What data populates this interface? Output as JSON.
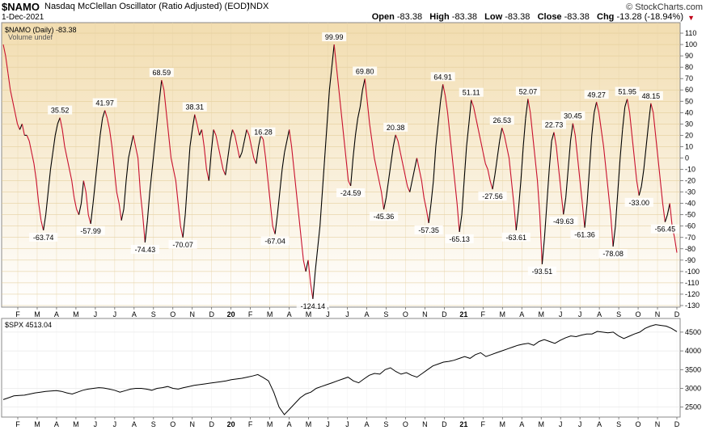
{
  "header": {
    "symbol": "$NAMO",
    "description": "Nasdaq McClellan Oscillator (Ratio Adjusted) (EOD)",
    "exchange": "INDX",
    "date": "1-Dec-2021",
    "logo_text": "© StockCharts.com",
    "open_label": "Open",
    "open": "-83.38",
    "high_label": "High",
    "high": "-83.38",
    "low_label": "Low",
    "low": "-83.38",
    "close_label": "Close",
    "close": "-83.38",
    "chg_label": "Chg",
    "chg": "-13.28 (-18.94%)"
  },
  "colors": {
    "up": "#000000",
    "down": "#c8102e",
    "bg_top": "#f2ddb0",
    "bg_bottom": "#ffffff",
    "label_box": "#ffffff"
  },
  "chart_data": [
    {
      "type": "line",
      "legend": "$NAMO (Daily) -83.38",
      "volume_note": "Volume undef",
      "ylim": [
        -130,
        115
      ],
      "yticks": [
        110,
        100,
        90,
        80,
        70,
        60,
        50,
        40,
        30,
        20,
        10,
        0,
        -10,
        -20,
        -30,
        -40,
        -50,
        -60,
        -70,
        -80,
        -90,
        -100,
        -110,
        -120,
        -130
      ],
      "x_labels": [
        "F",
        "M",
        "A",
        "M",
        "J",
        "J",
        "A",
        "S",
        "O",
        "N",
        "D",
        "20",
        "F",
        "M",
        "A",
        "M",
        "J",
        "J",
        "A",
        "S",
        "O",
        "N",
        "D",
        "21",
        "F",
        "M",
        "A",
        "M",
        "J",
        "J",
        "A",
        "S",
        "O",
        "N",
        "D"
      ],
      "x_domain": [
        "2019-02",
        "2021-12"
      ],
      "series": [
        {
          "values": [
            100,
            90,
            75,
            60,
            50,
            40,
            30,
            25,
            30,
            20,
            20,
            15,
            5,
            -5,
            -20,
            -40,
            -55,
            -63.74,
            -50,
            -30,
            -10,
            5,
            20,
            30,
            35.52,
            25,
            10,
            0,
            -10,
            -20,
            -35,
            -45,
            -50,
            -40,
            -20,
            -30,
            -50,
            -57.99,
            -40,
            -20,
            0,
            20,
            35,
            41.97,
            35,
            25,
            10,
            -10,
            -30,
            -40,
            -55,
            -45,
            -20,
            0,
            10,
            20,
            10,
            0,
            -30,
            -50,
            -74.43,
            -55,
            -30,
            -10,
            10,
            30,
            50,
            68.59,
            60,
            40,
            20,
            0,
            -10,
            -20,
            -40,
            -60,
            -70.07,
            -50,
            -20,
            10,
            25,
            38.31,
            30,
            20,
            25,
            10,
            -10,
            -20,
            5,
            25,
            20,
            10,
            0,
            -10,
            -15,
            0,
            15,
            25,
            20,
            10,
            0,
            5,
            15,
            25,
            20,
            10,
            0,
            -5,
            10,
            20,
            16.28,
            0,
            -20,
            -40,
            -60,
            -67.04,
            -50,
            -30,
            -10,
            5,
            15,
            25,
            10,
            -10,
            -30,
            -50,
            -70,
            -90,
            -100,
            -90,
            -110,
            -124.14,
            -100,
            -80,
            -60,
            -30,
            0,
            30,
            60,
            80,
            99.99,
            80,
            60,
            40,
            20,
            0,
            -20,
            -24.59,
            0,
            20,
            35,
            45,
            60,
            69.8,
            50,
            30,
            15,
            0,
            -10,
            -20,
            -30,
            -45.36,
            -35,
            -20,
            -5,
            10,
            20.38,
            15,
            5,
            -5,
            -15,
            -25,
            -30,
            -20,
            -10,
            0,
            -10,
            -20,
            -35,
            -45,
            -57.35,
            -40,
            -20,
            10,
            30,
            50,
            64.91,
            55,
            40,
            20,
            0,
            -20,
            -40,
            -65.13,
            -50,
            -20,
            10,
            30,
            51.11,
            45,
            35,
            25,
            15,
            5,
            -5,
            -10,
            -20,
            -27.56,
            -15,
            0,
            15,
            26.53,
            20,
            10,
            0,
            -20,
            -40,
            -63.61,
            -45,
            -20,
            10,
            35,
            52.07,
            40,
            20,
            0,
            -20,
            -50,
            -93.51,
            -70,
            -40,
            -10,
            15,
            22.73,
            10,
            -10,
            -30,
            -49.63,
            -35,
            -10,
            15,
            30.45,
            20,
            0,
            -20,
            -40,
            -61.36,
            -40,
            -10,
            20,
            40,
            49.27,
            40,
            25,
            10,
            -10,
            -30,
            -50,
            -78.08,
            -60,
            -30,
            0,
            25,
            45,
            51.95,
            40,
            20,
            0,
            -20,
            -33.0,
            -25,
            -10,
            10,
            30,
            48.15,
            40,
            20,
            0,
            -20,
            -40,
            -56.45,
            -50,
            -40,
            -60,
            -70.1,
            -83.38
          ],
          "annotations": [
            {
              "v": "-63.74"
            },
            {
              "v": "35.52"
            },
            {
              "v": "-57.99"
            },
            {
              "v": "41.97"
            },
            {
              "v": "-74.43"
            },
            {
              "v": "68.59"
            },
            {
              "v": "-70.07"
            },
            {
              "v": "38.31"
            },
            {
              "v": "16.28"
            },
            {
              "v": "-67.04"
            },
            {
              "v": "-124.14"
            },
            {
              "v": "99.99"
            },
            {
              "v": "-24.59"
            },
            {
              "v": "69.80"
            },
            {
              "v": "-45.36"
            },
            {
              "v": "20.38"
            },
            {
              "v": "-57.35"
            },
            {
              "v": "64.91"
            },
            {
              "v": "-65.13"
            },
            {
              "v": "51.11"
            },
            {
              "v": "-27.56"
            },
            {
              "v": "26.53"
            },
            {
              "v": "-63.61"
            },
            {
              "v": "52.07"
            },
            {
              "v": "-93.51"
            },
            {
              "v": "22.73"
            },
            {
              "v": "-49.63"
            },
            {
              "v": "30.45"
            },
            {
              "v": "-61.36"
            },
            {
              "v": "49.27"
            },
            {
              "v": "-78.08"
            },
            {
              "v": "-56.45"
            },
            {
              "v": "51.95"
            },
            {
              "v": "-33.00"
            },
            {
              "v": "48.15"
            }
          ]
        }
      ]
    },
    {
      "type": "line",
      "legend": "$SPX 4513.04",
      "ylim": [
        2300,
        4800
      ],
      "yticks": [
        4500,
        4000,
        3500,
        3000,
        2500
      ],
      "x_labels": [
        "F",
        "M",
        "A",
        "M",
        "J",
        "J",
        "A",
        "S",
        "O",
        "N",
        "D",
        "20",
        "F",
        "M",
        "A",
        "M",
        "J",
        "J",
        "A",
        "S",
        "O",
        "N",
        "D",
        "21",
        "F",
        "M",
        "A",
        "M",
        "J",
        "J",
        "A",
        "S",
        "O",
        "N",
        "D"
      ],
      "series": [
        {
          "values": [
            2700,
            2750,
            2800,
            2810,
            2820,
            2850,
            2880,
            2900,
            2920,
            2930,
            2940,
            2920,
            2880,
            2850,
            2900,
            2950,
            2980,
            3000,
            3020,
            3010,
            2980,
            2950,
            2900,
            2940,
            2980,
            3000,
            3000,
            2980,
            2950,
            3000,
            3020,
            3050,
            3000,
            2980,
            3020,
            3050,
            3080,
            3100,
            3120,
            3140,
            3160,
            3180,
            3200,
            3230,
            3250,
            3270,
            3300,
            3330,
            3370,
            3290,
            3200,
            2900,
            2500,
            2300,
            2450,
            2600,
            2750,
            2850,
            2900,
            3000,
            3050,
            3100,
            3150,
            3200,
            3250,
            3300,
            3200,
            3150,
            3250,
            3350,
            3400,
            3380,
            3500,
            3550,
            3450,
            3380,
            3420,
            3350,
            3300,
            3400,
            3500,
            3600,
            3650,
            3700,
            3720,
            3750,
            3800,
            3850,
            3800,
            3900,
            3950,
            3850,
            3900,
            3950,
            4000,
            4050,
            4100,
            4150,
            4180,
            4200,
            4150,
            4250,
            4300,
            4250,
            4200,
            4280,
            4350,
            4400,
            4380,
            4420,
            4450,
            4450,
            4520,
            4500,
            4480,
            4500,
            4400,
            4330,
            4390,
            4450,
            4500,
            4600,
            4660,
            4700,
            4680,
            4660,
            4600,
            4513.04
          ]
        }
      ]
    }
  ]
}
